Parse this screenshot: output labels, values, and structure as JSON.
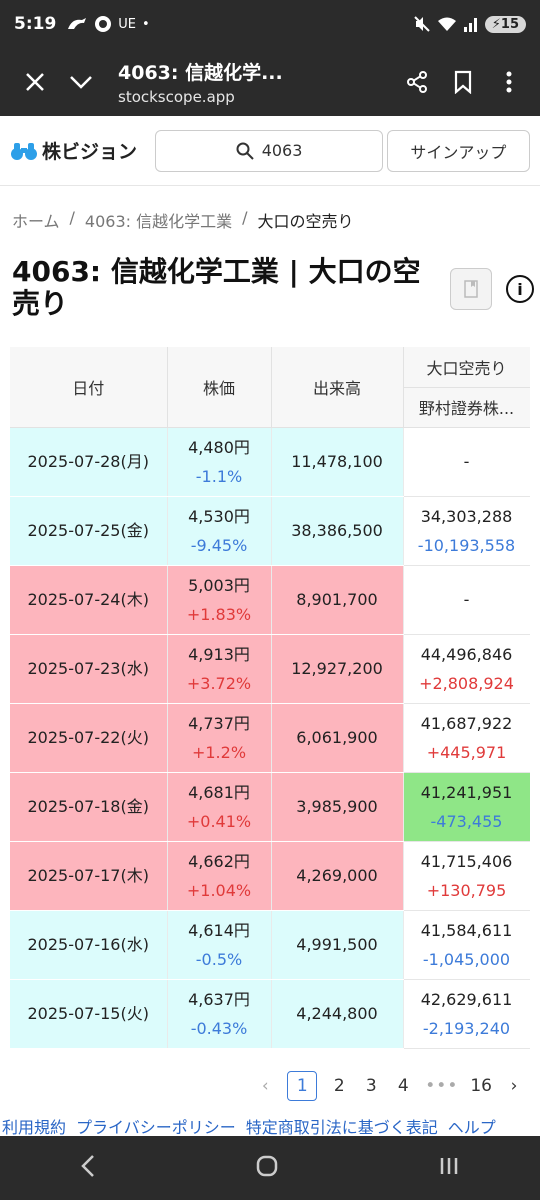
{
  "status_bar": {
    "time": "5:19",
    "carrier": "UE",
    "dot": "•",
    "battery": "15"
  },
  "browser": {
    "page_title": "4063: 信越化学...",
    "url": "stockscope.app"
  },
  "site": {
    "logo_text": "株ビジョン",
    "search_value": "4063",
    "signup_label": "サインアップ"
  },
  "breadcrumb": {
    "home": "ホーム",
    "sep": "/",
    "stock": "4063: 信越化学工業",
    "current": "大口の空売り"
  },
  "heading": "4063: 信越化学工業 | 大口の空売り",
  "table": {
    "headers": {
      "date": "日付",
      "price": "株価",
      "volume": "出来高",
      "short_group": "大口空売り",
      "broker": "野村證券株..."
    },
    "rows": [
      {
        "date": "2025-07-28(月)",
        "price": "4,480円",
        "change": "-1.1%",
        "volume": "11,478,100",
        "short": "-",
        "short_change": ""
      },
      {
        "date": "2025-07-25(金)",
        "price": "4,530円",
        "change": "-9.45%",
        "volume": "38,386,500",
        "short": "34,303,288",
        "short_change": "-10,193,558"
      },
      {
        "date": "2025-07-24(木)",
        "price": "5,003円",
        "change": "+1.83%",
        "volume": "8,901,700",
        "short": "-",
        "short_change": ""
      },
      {
        "date": "2025-07-23(水)",
        "price": "4,913円",
        "change": "+3.72%",
        "volume": "12,927,200",
        "short": "44,496,846",
        "short_change": "+2,808,924"
      },
      {
        "date": "2025-07-22(火)",
        "price": "4,737円",
        "change": "+1.2%",
        "volume": "6,061,900",
        "short": "41,687,922",
        "short_change": "+445,971"
      },
      {
        "date": "2025-07-18(金)",
        "price": "4,681円",
        "change": "+0.41%",
        "volume": "3,985,900",
        "short": "41,241,951",
        "short_change": "-473,455"
      },
      {
        "date": "2025-07-17(木)",
        "price": "4,662円",
        "change": "+1.04%",
        "volume": "4,269,000",
        "short": "41,715,406",
        "short_change": "+130,795"
      },
      {
        "date": "2025-07-16(水)",
        "price": "4,614円",
        "change": "-0.5%",
        "volume": "4,991,500",
        "short": "41,584,611",
        "short_change": "-1,045,000"
      },
      {
        "date": "2025-07-15(火)",
        "price": "4,637円",
        "change": "-0.43%",
        "volume": "4,244,800",
        "short": "42,629,611",
        "short_change": "-2,193,240"
      }
    ]
  },
  "pagination": {
    "prev": "‹",
    "pages": [
      "1",
      "2",
      "3",
      "4"
    ],
    "ellipsis": "•••",
    "last": "16",
    "next": "›"
  },
  "footer": {
    "links": [
      "利用規約",
      "プライバシーポリシー",
      "特定商取引法に基づく表記",
      "ヘルプ"
    ]
  },
  "colors": {
    "down_row": "#dcfcfc",
    "up_row": "#fdb5bd",
    "down_text": "#3d7bd9",
    "up_text": "#e03a3a",
    "highlight": "#8fe687"
  }
}
